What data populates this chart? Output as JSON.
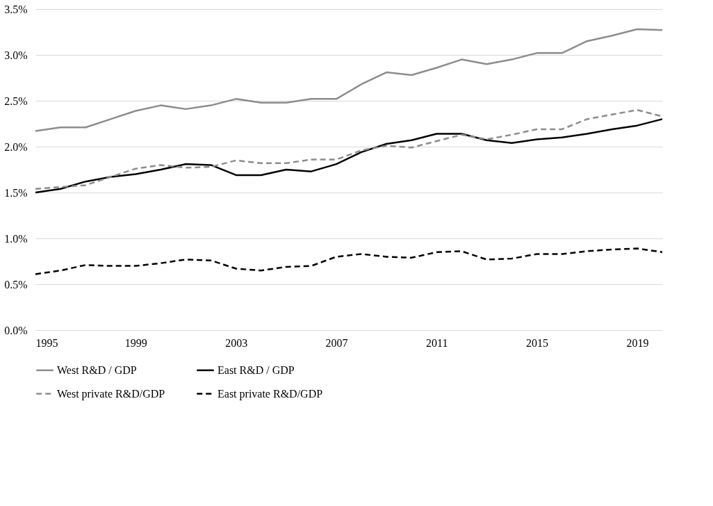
{
  "chart_data": {
    "type": "line",
    "x": [
      1995,
      1996,
      1997,
      1998,
      1999,
      2000,
      2001,
      2002,
      2003,
      2004,
      2005,
      2006,
      2007,
      2008,
      2009,
      2010,
      2011,
      2012,
      2013,
      2014,
      2015,
      2016,
      2017,
      2018,
      2019,
      2020
    ],
    "xlim": [
      1995,
      2020
    ],
    "xticks": [
      1995,
      1999,
      2003,
      2007,
      2011,
      2015,
      2019
    ],
    "ylim": [
      0,
      3.5
    ],
    "yticks": [
      {
        "value": 0,
        "label": "0.0%"
      },
      {
        "value": 0.5,
        "label": "0.5%"
      },
      {
        "value": 1.0,
        "label": "1.0%"
      },
      {
        "value": 1.5,
        "label": "1.5%"
      },
      {
        "value": 2.0,
        "label": "2.0%"
      },
      {
        "value": 2.5,
        "label": "2.5%"
      },
      {
        "value": 3.0,
        "label": "3.0%"
      },
      {
        "value": 3.5,
        "label": "3.5%"
      }
    ],
    "grid": "y",
    "legend": "bottom",
    "series": [
      {
        "name": "West R&D / GDP",
        "color": "#8c8c8c",
        "line_style": "solid",
        "values": [
          2.17,
          2.21,
          2.21,
          2.3,
          2.39,
          2.45,
          2.41,
          2.45,
          2.52,
          2.48,
          2.48,
          2.52,
          2.52,
          2.68,
          2.81,
          2.78,
          2.86,
          2.95,
          2.9,
          2.95,
          3.02,
          3.02,
          3.15,
          3.21,
          3.28,
          3.27
        ]
      },
      {
        "name": "East R&D / GDP",
        "color": "#000000",
        "line_style": "solid",
        "values": [
          1.5,
          1.54,
          1.62,
          1.67,
          1.7,
          1.75,
          1.81,
          1.8,
          1.69,
          1.69,
          1.75,
          1.73,
          1.81,
          1.94,
          2.03,
          2.07,
          2.14,
          2.14,
          2.07,
          2.04,
          2.08,
          2.1,
          2.14,
          2.19,
          2.23,
          2.3
        ]
      },
      {
        "name": "West private R&D/GDP",
        "color": "#8c8c8c",
        "line_style": "dashed",
        "values": [
          1.54,
          1.56,
          1.58,
          1.67,
          1.76,
          1.8,
          1.77,
          1.78,
          1.85,
          1.82,
          1.82,
          1.86,
          1.86,
          1.96,
          2.01,
          1.99,
          2.06,
          2.13,
          2.08,
          2.13,
          2.19,
          2.19,
          2.3,
          2.35,
          2.4,
          2.33
        ]
      },
      {
        "name": "East private R&D/GDP",
        "color": "#000000",
        "line_style": "dashed",
        "values": [
          0.61,
          0.65,
          0.71,
          0.7,
          0.7,
          0.73,
          0.77,
          0.76,
          0.67,
          0.65,
          0.69,
          0.7,
          0.8,
          0.83,
          0.8,
          0.79,
          0.85,
          0.86,
          0.77,
          0.78,
          0.83,
          0.83,
          0.86,
          0.88,
          0.89,
          0.85
        ]
      }
    ]
  }
}
